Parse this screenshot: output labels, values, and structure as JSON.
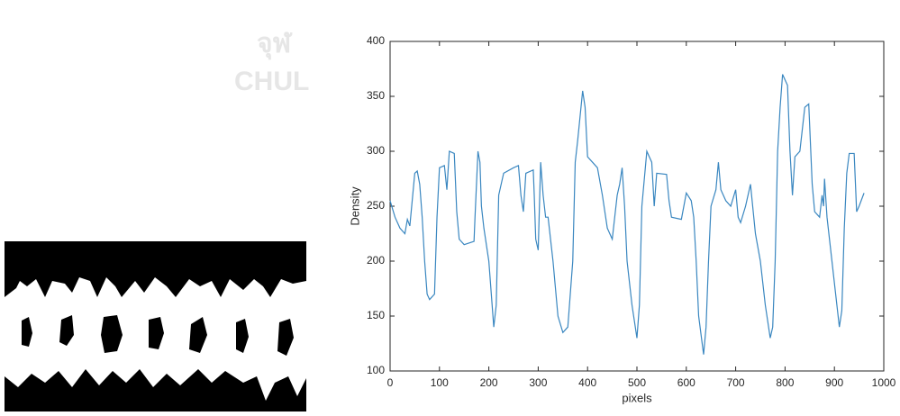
{
  "watermark": [
    "จุฬ",
    "CHUL"
  ],
  "chart_data": {
    "type": "line",
    "xlabel": "pixels",
    "ylabel": "Density",
    "x": [
      0,
      10,
      20,
      30,
      35,
      40,
      50,
      55,
      60,
      65,
      70,
      75,
      80,
      90,
      95,
      100,
      110,
      115,
      120,
      130,
      135,
      140,
      150,
      170,
      172,
      178,
      182,
      185,
      190,
      200,
      210,
      215,
      220,
      230,
      250,
      260,
      265,
      270,
      275,
      290,
      292,
      295,
      300,
      305,
      310,
      315,
      320,
      330,
      340,
      350,
      360,
      365,
      370,
      375,
      380,
      390,
      395,
      400,
      410,
      420,
      430,
      440,
      450,
      460,
      465,
      470,
      475,
      480,
      490,
      500,
      505,
      510,
      520,
      530,
      535,
      540,
      560,
      565,
      570,
      590,
      600,
      610,
      615,
      620,
      625,
      635,
      640,
      645,
      650,
      660,
      665,
      670,
      680,
      690,
      700,
      705,
      710,
      720,
      730,
      740,
      750,
      760,
      770,
      775,
      780,
      785,
      790,
      795,
      805,
      810,
      815,
      820,
      830,
      840,
      848,
      855,
      860,
      870,
      875,
      878,
      880,
      885,
      895,
      905,
      910,
      915,
      920,
      925,
      930,
      940,
      945,
      950,
      960
    ],
    "series": [
      {
        "name": "Density",
        "color": "#3a87c0",
        "values": [
          255,
          240,
          230,
          225,
          238,
          232,
          280,
          282,
          270,
          240,
          200,
          170,
          165,
          170,
          240,
          285,
          287,
          265,
          300,
          298,
          245,
          220,
          215,
          218,
          240,
          300,
          290,
          250,
          230,
          200,
          140,
          160,
          260,
          280,
          285,
          287,
          260,
          245,
          280,
          283,
          260,
          220,
          210,
          290,
          260,
          240,
          240,
          200,
          150,
          135,
          140,
          170,
          200,
          290,
          310,
          355,
          340,
          295,
          290,
          285,
          260,
          230,
          220,
          260,
          270,
          285,
          250,
          200,
          160,
          130,
          160,
          250,
          300,
          290,
          250,
          280,
          279,
          255,
          240,
          238,
          262,
          255,
          240,
          200,
          150,
          115,
          140,
          200,
          250,
          265,
          290,
          265,
          255,
          250,
          265,
          240,
          235,
          250,
          270,
          225,
          200,
          160,
          130,
          140,
          200,
          300,
          340,
          370,
          360,
          300,
          260,
          295,
          300,
          340,
          343,
          270,
          245,
          240,
          260,
          250,
          275,
          240,
          200,
          160,
          140,
          155,
          230,
          280,
          298,
          298,
          245,
          250,
          262
        ]
      }
    ],
    "xlim": [
      0,
      1000
    ],
    "ylim": [
      100,
      400
    ],
    "xticks": [
      0,
      100,
      200,
      300,
      400,
      500,
      600,
      700,
      800,
      900,
      1000
    ],
    "yticks": [
      100,
      150,
      200,
      250,
      300,
      350,
      400
    ]
  }
}
